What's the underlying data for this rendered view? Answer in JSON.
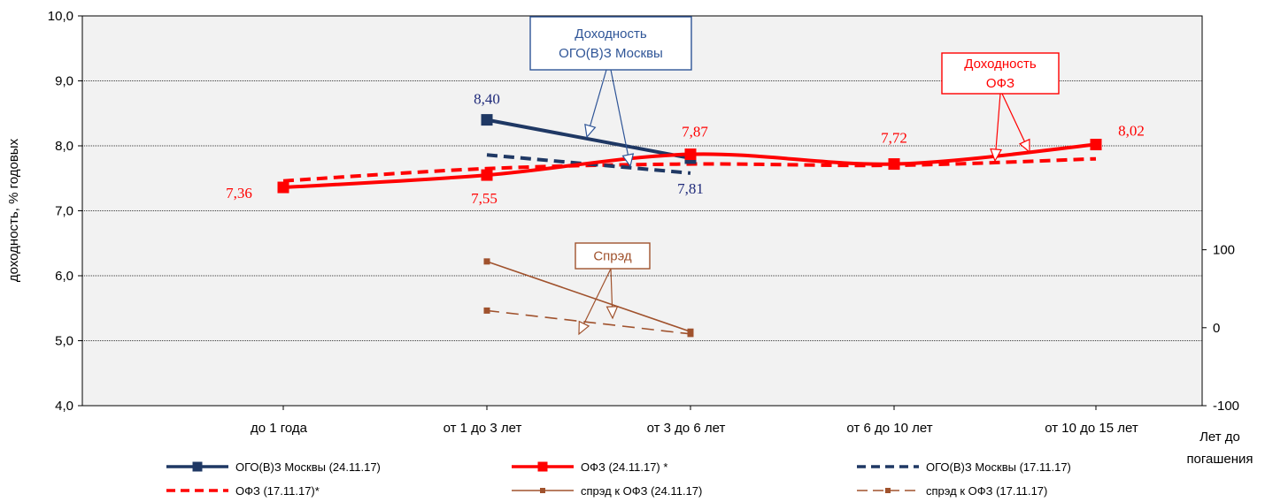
{
  "chart_data": {
    "type": "line",
    "categories": [
      "до 1 года",
      "от 1 до 3 лет",
      "от 3 до 6 лет",
      "от 6 до 10 лет",
      "от 10 до 15 лет"
    ],
    "ylabel": "доходность, % годовых",
    "xlabel": "Лет до погашения",
    "ylim": [
      4.0,
      10.0
    ],
    "yticks": [
      "4,0",
      "5,0",
      "6,0",
      "7,0",
      "8,0",
      "9,0",
      "10,0"
    ],
    "y2lim": [
      -100,
      100
    ],
    "y2ticks": [
      "-100",
      "0",
      "100"
    ],
    "y2_axis_range": [
      -100,
      400
    ],
    "grid": true,
    "legend_position": "bottom",
    "series": [
      {
        "name": "ОГО(В)З Москвы (24.11.17)",
        "axis": "left",
        "color": "#1F3864",
        "style": "solid-square",
        "values": [
          null,
          8.4,
          7.81,
          null,
          null
        ],
        "labels": [
          null,
          "8,40",
          "7,81",
          null,
          null
        ]
      },
      {
        "name": "ОФЗ (24.11.17) *",
        "axis": "left",
        "color": "#FF0000",
        "style": "solid-square",
        "values": [
          7.36,
          7.55,
          7.87,
          7.72,
          8.02
        ],
        "labels": [
          "7,36",
          "7,55",
          "7,87",
          "7,72",
          "8,02"
        ]
      },
      {
        "name": "ОГО(В)З Москвы (17.11.17)",
        "axis": "left",
        "color": "#1F3864",
        "style": "dashed",
        "values": [
          null,
          7.86,
          7.58,
          null,
          null
        ]
      },
      {
        "name": "ОФЗ  (17.11.17)*",
        "axis": "left",
        "color": "#FF0000",
        "style": "dashed",
        "values": [
          7.46,
          7.65,
          7.72,
          7.7,
          7.8
        ]
      },
      {
        "name": "спрэд к ОФЗ (24.11.17)",
        "axis": "right",
        "color": "#A0522D",
        "style": "thin-solid-square",
        "values": [
          null,
          85,
          -5,
          null,
          null
        ]
      },
      {
        "name": "спрэд к ОФЗ (17.11.17)",
        "axis": "right",
        "color": "#A0522D",
        "style": "thin-dashed-square",
        "values": [
          null,
          22,
          -8,
          null,
          null
        ]
      }
    ],
    "annotations": [
      {
        "text": "Доходность ОГО(В)З Москвы",
        "lines": [
          "Доходность",
          "ОГО(В)З Москвы"
        ],
        "color": "#2F5597"
      },
      {
        "text": "Доходность ОФЗ",
        "lines": [
          "Доходность",
          "ОФЗ"
        ],
        "color": "#FF0000"
      },
      {
        "text": "Спрэд",
        "lines": [
          "Спрэд"
        ],
        "color": "#A0522D"
      }
    ]
  }
}
